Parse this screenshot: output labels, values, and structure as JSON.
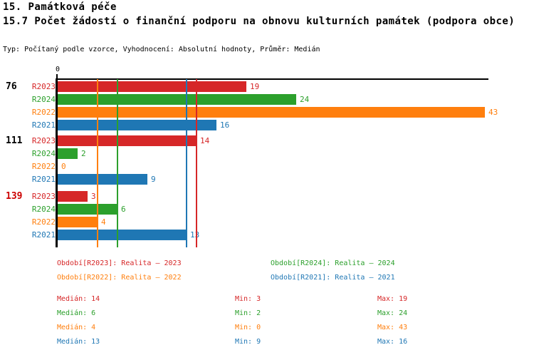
{
  "header": {
    "title_line1": "15. Památková péče",
    "title_line2": "15.7 Počet žádostí o finanční podporu na obnovu kulturních památek (podpora obce)",
    "meta": "Typ: Počítaný podle vzorce, Vyhodnocení: Absolutní hodnoty, Průměr: Medián"
  },
  "chart_data": {
    "type": "bar",
    "orientation": "horizontal",
    "title": "15.7 Počet žádostí o finanční podporu na obnovu kulturních památek (podpora obce)",
    "origin_tick_label": "0",
    "xlim": [
      0,
      43.4
    ],
    "grid": "vertical median lines per series, drawn over bars",
    "series_order": [
      "R2023",
      "R2024",
      "R2022",
      "R2021"
    ],
    "series_colors": {
      "R2023": "#d62728",
      "R2024": "#2ca02c",
      "R2022": "#ff7f0e",
      "R2021": "#1f77b4"
    },
    "groups": [
      {
        "label": "76",
        "label_color": "#000000",
        "values": [
          19,
          24,
          43,
          16
        ]
      },
      {
        "label": "111",
        "label_color": "#000000",
        "values": [
          14,
          2,
          0,
          9
        ]
      },
      {
        "label": "139",
        "label_color": "#cc0000",
        "values": [
          3,
          6,
          4,
          13
        ]
      }
    ],
    "median_lines": [
      {
        "series": "R2023",
        "value": 14
      },
      {
        "series": "R2024",
        "value": 6
      },
      {
        "series": "R2022",
        "value": 4
      },
      {
        "series": "R2021",
        "value": 13
      }
    ]
  },
  "legend": [
    {
      "series": "R2023",
      "label": "Období[R2023]: Realita – 2023"
    },
    {
      "series": "R2024",
      "label": "Období[R2024]: Realita – 2024"
    },
    {
      "series": "R2022",
      "label": "Období[R2022]: Realita – 2022"
    },
    {
      "series": "R2021",
      "label": "Období[R2021]: Realita – 2021"
    }
  ],
  "stats": {
    "median_label": "Medián",
    "min_label": "Min",
    "max_label": "Max",
    "rows": [
      {
        "series": "R2023",
        "median": 14,
        "min": 3,
        "max": 19
      },
      {
        "series": "R2024",
        "median": 6,
        "min": 2,
        "max": 24
      },
      {
        "series": "R2022",
        "median": 4,
        "min": 0,
        "max": 43
      },
      {
        "series": "R2021",
        "median": 13,
        "min": 9,
        "max": 16
      }
    ]
  },
  "colors": {
    "axis": "#000000",
    "background": "#ffffff"
  }
}
